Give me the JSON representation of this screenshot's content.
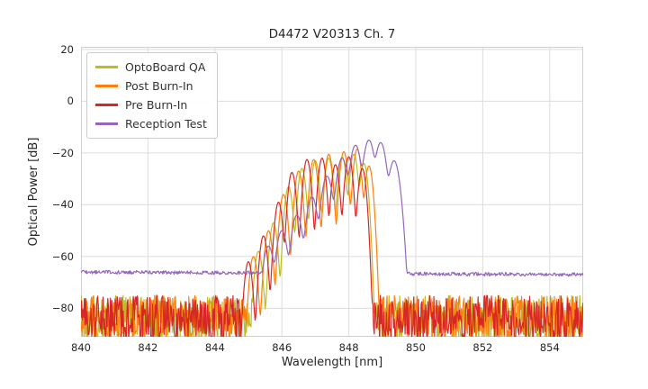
{
  "chart_data": {
    "type": "line",
    "title": "D4472 V20313 Ch. 7",
    "xlabel": "Wavelength [nm]",
    "ylabel": "Optical Power [dB]",
    "xlim": [
      840,
      855
    ],
    "ylim": [
      -91,
      21
    ],
    "xticks": [
      840,
      842,
      844,
      846,
      848,
      850,
      852,
      854
    ],
    "xtick_labels": [
      "840",
      "842",
      "844",
      "846",
      "848",
      "850",
      "852",
      "854"
    ],
    "yticks": [
      20,
      0,
      -20,
      -40,
      -60,
      -80
    ],
    "ytick_labels": [
      "20",
      "0",
      "−20",
      "−40",
      "−60",
      "−80"
    ],
    "grid": true,
    "grid_color": "#dcdcdc",
    "axes_edge_color": "#d0d0d0",
    "legend_position": "upper-left",
    "noise_seed": 20313,
    "sample_step_nm": 0.02,
    "series": [
      {
        "name": "OptoBoard QA",
        "color": "#bcbd22",
        "noise_floor_db": -84,
        "noise_amp_db": 9,
        "mode_sigma_nm": 0.06,
        "modes": [
          [
            845.3,
            -58
          ],
          [
            845.75,
            -47
          ],
          [
            846.2,
            -33
          ],
          [
            846.6,
            -26
          ],
          [
            847.0,
            -23
          ],
          [
            847.4,
            -22
          ],
          [
            847.8,
            -21.5
          ],
          [
            848.15,
            -20.5
          ],
          [
            848.45,
            -24
          ]
        ]
      },
      {
        "name": "Post Burn-In",
        "color": "#ff7f0e",
        "noise_floor_db": -84,
        "noise_amp_db": 9,
        "mode_sigma_nm": 0.06,
        "modes": [
          [
            845.15,
            -60
          ],
          [
            845.6,
            -50
          ],
          [
            846.05,
            -36
          ],
          [
            846.5,
            -27
          ],
          [
            846.95,
            -22.5
          ],
          [
            847.4,
            -20.5
          ],
          [
            847.85,
            -19.5
          ],
          [
            848.25,
            -18.5
          ],
          [
            848.6,
            -25
          ]
        ]
      },
      {
        "name": "Pre Burn-In",
        "color": "#d62728",
        "noise_floor_db": -84,
        "noise_amp_db": 9,
        "mode_sigma_nm": 0.06,
        "modes": [
          [
            845.0,
            -62
          ],
          [
            845.45,
            -52
          ],
          [
            845.9,
            -39
          ],
          [
            846.3,
            -27.5
          ],
          [
            846.75,
            -22.5
          ],
          [
            847.2,
            -22
          ],
          [
            847.6,
            -24.5
          ],
          [
            848.0,
            -21.5
          ],
          [
            848.4,
            -26
          ]
        ]
      },
      {
        "name": "Reception Test",
        "color": "#9467bd",
        "noise_floor_db": -66,
        "noise_floor_end_db": -67,
        "noise_amp_db": 0.7,
        "mode_sigma_nm": 0.085,
        "modes": [
          [
            845.6,
            -56
          ],
          [
            846.0,
            -50
          ],
          [
            846.45,
            -44
          ],
          [
            846.9,
            -37
          ],
          [
            847.35,
            -29
          ],
          [
            847.8,
            -22
          ],
          [
            848.2,
            -17
          ],
          [
            848.6,
            -15
          ],
          [
            848.95,
            -16
          ],
          [
            849.35,
            -23
          ]
        ]
      }
    ]
  }
}
